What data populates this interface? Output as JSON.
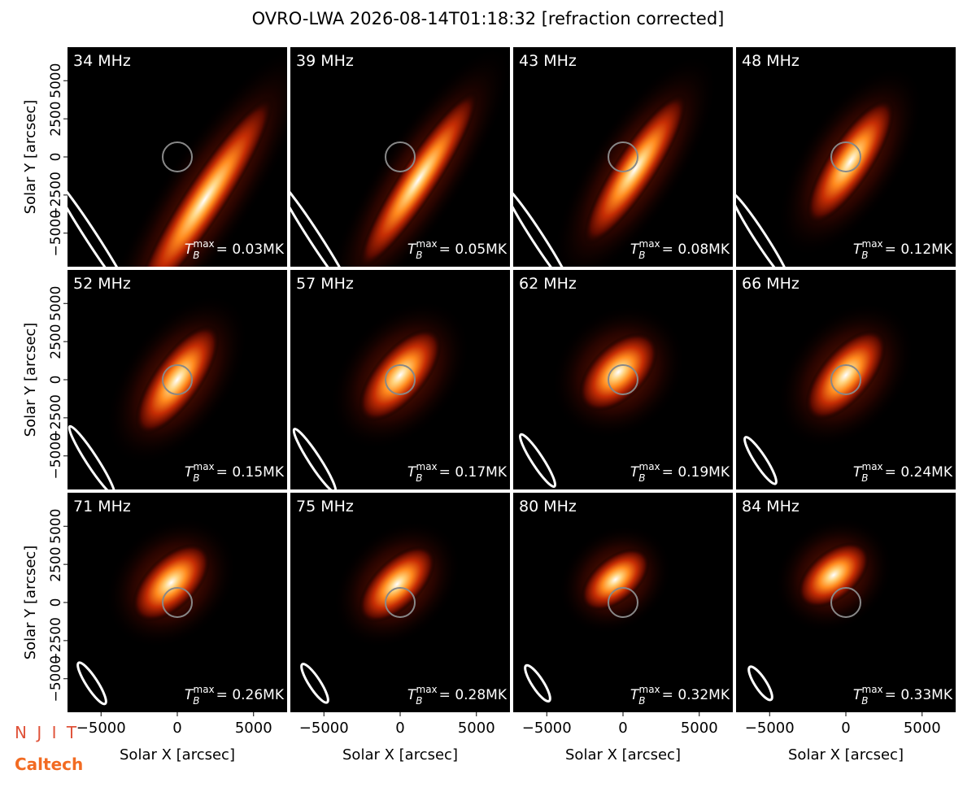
{
  "title": "OVRO-LWA 2026-08-14T01:18:32 [refraction corrected]",
  "axes": {
    "xlabel": "Solar X [arcsec]",
    "ylabel": "Solar Y [arcsec]",
    "xlim": [
      -7200,
      7200
    ],
    "ylim": [
      -7200,
      7200
    ],
    "xticks": [
      {
        "value": -5000,
        "label": "−5000"
      },
      0,
      5000
    ],
    "yticks": [
      {
        "value": -5000,
        "label": "−5000"
      },
      {
        "value": -2500,
        "label": "−2500"
      },
      0,
      2500,
      5000
    ],
    "tmax_symbol": "T",
    "tmax_sub": "B",
    "tmax_sup": "max"
  },
  "logos": [
    "N J I T",
    "Caltech"
  ],
  "chart_data": [
    {
      "type": "image",
      "label": "34 MHz",
      "tmax": 0.03,
      "tmax_label": "= 0.03MK"
    },
    {
      "type": "image",
      "label": "39 MHz",
      "tmax": 0.05,
      "tmax_label": "= 0.05MK"
    },
    {
      "type": "image",
      "label": "43 MHz",
      "tmax": 0.08,
      "tmax_label": "= 0.08MK"
    },
    {
      "type": "image",
      "label": "48 MHz",
      "tmax": 0.12,
      "tmax_label": "= 0.12MK"
    },
    {
      "type": "image",
      "label": "52 MHz",
      "tmax": 0.15,
      "tmax_label": "= 0.15MK"
    },
    {
      "type": "image",
      "label": "57 MHz",
      "tmax": 0.17,
      "tmax_label": "= 0.17MK"
    },
    {
      "type": "image",
      "label": "62 MHz",
      "tmax": 0.19,
      "tmax_label": "= 0.19MK"
    },
    {
      "type": "image",
      "label": "66 MHz",
      "tmax": 0.24,
      "tmax_label": "= 0.24MK"
    },
    {
      "type": "image",
      "label": "71 MHz",
      "tmax": 0.26,
      "tmax_label": "= 0.26MK"
    },
    {
      "type": "image",
      "label": "75 MHz",
      "tmax": 0.28,
      "tmax_label": "= 0.28MK"
    },
    {
      "type": "image",
      "label": "80 MHz",
      "tmax": 0.32,
      "tmax_label": "= 0.32MK"
    },
    {
      "type": "image",
      "label": "84 MHz",
      "tmax": 0.33,
      "tmax_label": "= 0.33MK"
    }
  ]
}
